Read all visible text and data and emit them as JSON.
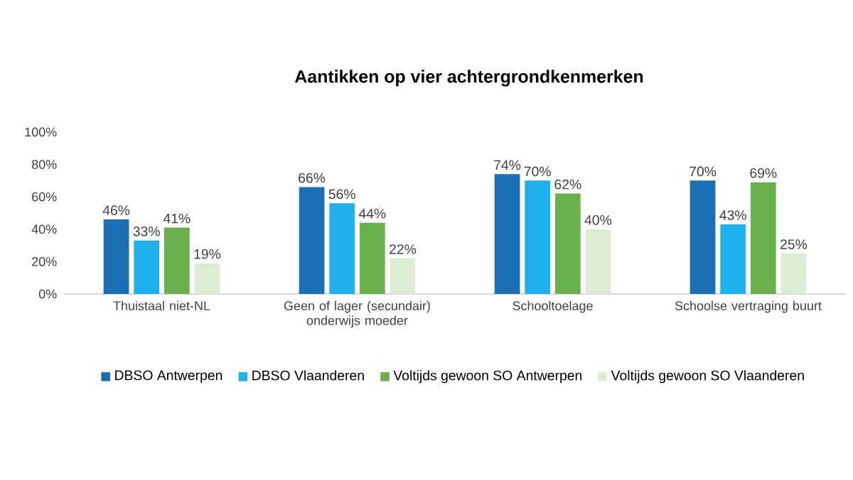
{
  "chart_data": {
    "type": "bar",
    "title": "Aantikken op vier achtergrondkenmerken",
    "categories": [
      "Thuistaal niet-NL",
      "Geen of lager (secundair) onderwijs moeder",
      "Schooltoelage",
      "Schoolse vertraging buurt"
    ],
    "series": [
      {
        "name": "DBSO Antwerpen",
        "color": "#1a6fb5",
        "values": [
          46,
          66,
          74,
          70
        ],
        "value_labels": [
          "46%",
          "66%",
          "74%",
          "70%"
        ]
      },
      {
        "name": "DBSO Vlaanderen",
        "color": "#1fb0ee",
        "values": [
          33,
          56,
          70,
          43
        ],
        "value_labels": [
          "33%",
          "56%",
          "70%",
          "43%"
        ]
      },
      {
        "name": "Voltijds gewoon SO Antwerpen",
        "color": "#6ab04c",
        "values": [
          41,
          44,
          62,
          69
        ],
        "value_labels": [
          "41%",
          "44%",
          "62%",
          "69%"
        ]
      },
      {
        "name": "Voltijds gewoon SO Vlaanderen",
        "color": "#dcedd4",
        "values": [
          19,
          22,
          40,
          25
        ],
        "value_labels": [
          "19%",
          "22%",
          "40%",
          "25%"
        ]
      }
    ],
    "ylim": [
      0,
      100
    ],
    "yticks": [
      {
        "value": 0,
        "label": "0%"
      },
      {
        "value": 20,
        "label": "20%"
      },
      {
        "value": 40,
        "label": "40%"
      },
      {
        "value": 60,
        "label": "60%"
      },
      {
        "value": 80,
        "label": "80%"
      },
      {
        "value": 100,
        "label": "100%"
      }
    ],
    "grid": false,
    "legend": "bottom"
  }
}
